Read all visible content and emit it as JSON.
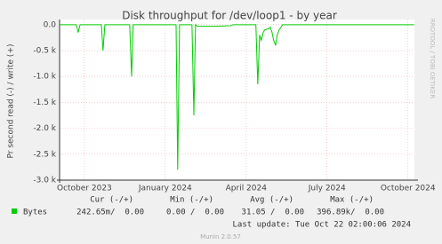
{
  "chart_data": {
    "type": "line",
    "title": "Disk throughput for /dev/loop1 - by year",
    "y_label": "Pr second read (-) / write (+)",
    "x": [
      -0.92,
      -0.3,
      -0.23,
      -0.16,
      0.63,
      0.69,
      0.76,
      1.68,
      1.75,
      1.81,
      3.4,
      3.46,
      3.53,
      3.99,
      4.06,
      4.12,
      4.19,
      4.78,
      5.44,
      5.51,
      6.36,
      6.43,
      6.5,
      6.56,
      6.63,
      6.69,
      6.82,
      6.89,
      6.96,
      7.02,
      7.09,
      7.15,
      7.22,
      7.29,
      7.35,
      12.23
    ],
    "series": [
      {
        "name": "Bytes",
        "color": "#00cc00",
        "values": [
          0,
          0,
          -150,
          0,
          0,
          -500,
          0,
          0,
          -1000,
          0,
          0,
          -2800,
          0,
          0,
          -1750,
          0,
          -30,
          -30,
          -20,
          0,
          0,
          -1150,
          -200,
          -300,
          -150,
          -100,
          -80,
          -50,
          -150,
          -300,
          -400,
          -200,
          -100,
          -50,
          0,
          0
        ]
      }
    ],
    "xlim": [
      -0.92,
      12.24
    ],
    "xticks": [
      {
        "value": 0,
        "label": "October 2023"
      },
      {
        "value": 3,
        "label": "January 2024"
      },
      {
        "value": 6,
        "label": "April 2024"
      },
      {
        "value": 9,
        "label": "July 2024"
      },
      {
        "value": 12,
        "label": "October 2024"
      }
    ],
    "ylim": [
      -3000,
      100
    ],
    "yticks": [
      {
        "value": 0,
        "label": "0.0"
      },
      {
        "value": -500,
        "label": "-0.5 k"
      },
      {
        "value": -1000,
        "label": "-1.0 k"
      },
      {
        "value": -1500,
        "label": "-1.5 k"
      },
      {
        "value": -2000,
        "label": "-2.0 k"
      },
      {
        "value": -2500,
        "label": "-2.5 k"
      },
      {
        "value": -3000,
        "label": "-3.0 k"
      }
    ],
    "grid": true,
    "stats": {
      "headers": [
        "Cur (-/+)",
        "Min (-/+)",
        "Avg (-/+)",
        "Max (-/+)"
      ],
      "row": [
        "242.65m/  0.00",
        "0.00 /  0.00",
        "31.05 /  0.00",
        "396.89k/  0.00"
      ]
    },
    "last_update": "Last update: Tue Oct 22 02:00:06 2024",
    "credit": "Munin 2.0.57",
    "watermark": "RRDTOOL / TOBI OETIKER"
  }
}
